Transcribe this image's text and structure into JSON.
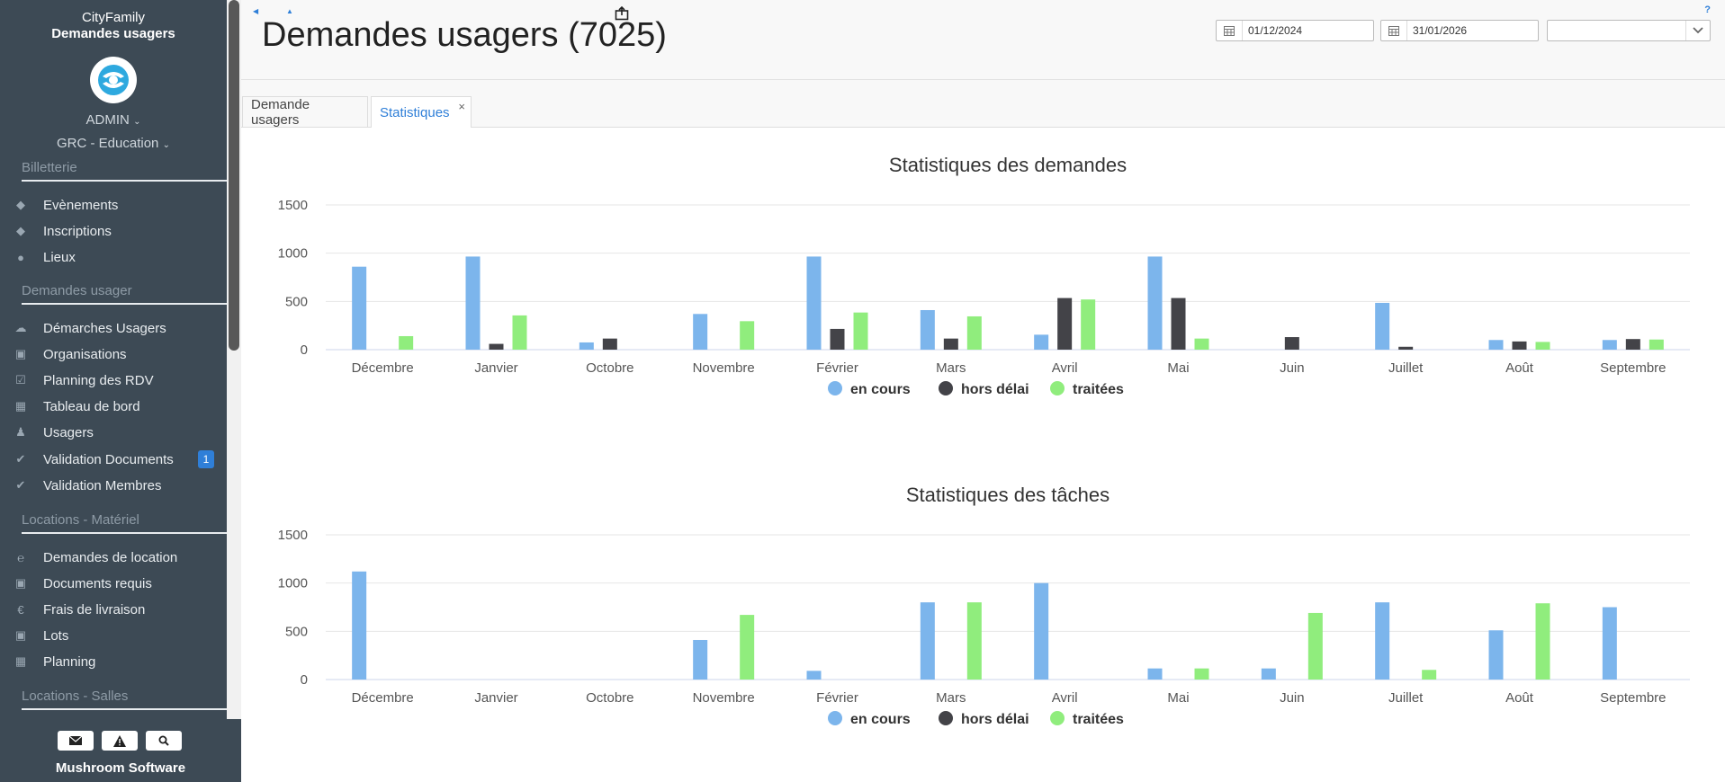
{
  "sidebar": {
    "app_name": "CityFamily",
    "app_subtitle": "Demandes usagers",
    "user": "ADMIN",
    "organization": "GRC - Education",
    "sections": [
      {
        "label": "Billetterie"
      },
      {
        "label": "Demandes usager"
      },
      {
        "label": "Locations - Matériel"
      },
      {
        "label": "Locations - Salles"
      }
    ],
    "items": [
      {
        "label": "Evènements",
        "icon": "ticket-icon"
      },
      {
        "label": "Inscriptions",
        "icon": "ticket-icon"
      },
      {
        "label": "Lieux",
        "icon": "map-marker-icon"
      },
      {
        "label": "Démarches Usagers",
        "icon": "cloud-upload-icon"
      },
      {
        "label": "Organisations",
        "icon": "building-icon"
      },
      {
        "label": "Planning des RDV",
        "icon": "calendar-check-icon"
      },
      {
        "label": "Tableau de bord",
        "icon": "table-icon"
      },
      {
        "label": "Usagers",
        "icon": "users-icon"
      },
      {
        "label": "Validation Documents",
        "icon": "check-icon",
        "badge": "1"
      },
      {
        "label": "Validation Membres",
        "icon": "check-icon"
      },
      {
        "label": "Demandes de location",
        "icon": "internet-explorer-icon"
      },
      {
        "label": "Documents requis",
        "icon": "book-icon"
      },
      {
        "label": "Frais de livraison",
        "icon": "euro-icon"
      },
      {
        "label": "Lots",
        "icon": "building-icon"
      },
      {
        "label": "Planning",
        "icon": "calendar-icon"
      }
    ],
    "footer_brand": "Mushroom Software"
  },
  "header": {
    "title": "Demandes usagers (7025)",
    "date_from": "01/12/2024",
    "date_to": "31/01/2026",
    "select_value": "",
    "help": "?"
  },
  "tabs": [
    {
      "label": "Demande usagers",
      "active": false
    },
    {
      "label": "Statistiques",
      "active": true,
      "close": "×"
    }
  ],
  "colors": {
    "en_cours": "#7cb5ec",
    "hors_delai": "#434348",
    "traitees": "#90ed7d",
    "sidebar_bg": "#3d4a55",
    "accent": "#2f7fd8"
  },
  "chart_data": [
    {
      "type": "bar",
      "title": "Statistiques des demandes",
      "categories": [
        "Décembre",
        "Janvier",
        "Octobre",
        "Novembre",
        "Février",
        "Mars",
        "Avril",
        "Mai",
        "Juin",
        "Juillet",
        "Août",
        "Septembre"
      ],
      "ylim": [
        0,
        1500
      ],
      "yticks": [
        0,
        500,
        1000,
        1500
      ],
      "legend_position": "bottom",
      "grid": true,
      "series": [
        {
          "name": "en cours",
          "values": [
            860,
            965,
            75,
            370,
            965,
            410,
            155,
            965,
            0,
            485,
            100,
            100
          ]
        },
        {
          "name": "hors délai",
          "values": [
            0,
            60,
            115,
            0,
            215,
            115,
            535,
            535,
            130,
            30,
            85,
            110
          ]
        },
        {
          "name": "traitées",
          "values": [
            140,
            355,
            0,
            295,
            385,
            345,
            520,
            115,
            0,
            0,
            80,
            105
          ]
        }
      ]
    },
    {
      "type": "bar",
      "title": "Statistiques des tâches",
      "categories": [
        "Décembre",
        "Janvier",
        "Octobre",
        "Novembre",
        "Février",
        "Mars",
        "Avril",
        "Mai",
        "Juin",
        "Juillet",
        "Août",
        "Septembre"
      ],
      "ylim": [
        0,
        1500
      ],
      "yticks": [
        0,
        500,
        1000,
        1500
      ],
      "legend_position": "bottom",
      "grid": true,
      "series": [
        {
          "name": "en cours",
          "values": [
            1120,
            0,
            0,
            410,
            90,
            800,
            1000,
            115,
            115,
            800,
            510,
            750
          ]
        },
        {
          "name": "hors délai",
          "values": [
            0,
            0,
            0,
            0,
            0,
            0,
            0,
            0,
            0,
            0,
            0,
            0
          ]
        },
        {
          "name": "traitées",
          "values": [
            0,
            0,
            0,
            670,
            0,
            800,
            0,
            115,
            690,
            100,
            790,
            0
          ]
        }
      ]
    }
  ]
}
